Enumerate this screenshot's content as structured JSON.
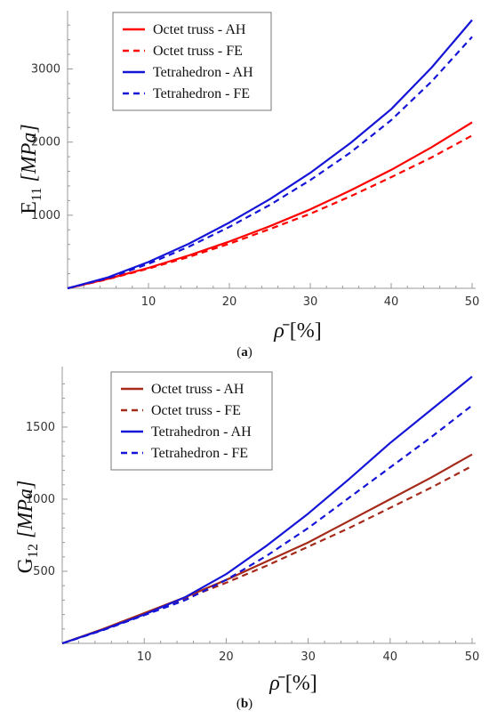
{
  "chart_data": [
    {
      "type": "line",
      "caption": "(a)",
      "xlabel": "ρ̄ [%]",
      "ylabel": "E11 [MPa]",
      "ylabel_main": "E",
      "ylabel_sub": "11",
      "ylabel_unit": "[MPa]",
      "xlim": [
        0,
        50
      ],
      "ylim": [
        0,
        3700
      ],
      "xticks": [
        10,
        20,
        30,
        40,
        50
      ],
      "yticks": [
        1000,
        2000,
        3000
      ],
      "grid": false,
      "legend_position": "top-left",
      "series": [
        {
          "name": "Octet truss - AH",
          "color": "#ff0000",
          "style": "solid",
          "x": [
            0,
            5,
            10,
            15,
            20,
            25,
            30,
            35,
            40,
            45,
            50
          ],
          "y": [
            0,
            130,
            280,
            450,
            640,
            850,
            1080,
            1340,
            1620,
            1930,
            2270
          ]
        },
        {
          "name": "Octet truss - FE",
          "color": "#ff0000",
          "style": "dashed",
          "x": [
            0,
            5,
            10,
            15,
            20,
            25,
            30,
            35,
            40,
            45,
            50
          ],
          "y": [
            0,
            125,
            270,
            430,
            610,
            810,
            1020,
            1260,
            1520,
            1790,
            2090
          ]
        },
        {
          "name": "Tetrahedron - AH",
          "color": "#1515d8",
          "style": "solid",
          "x": [
            0,
            5,
            10,
            15,
            20,
            25,
            30,
            35,
            40,
            45,
            50
          ],
          "y": [
            0,
            150,
            360,
            610,
            900,
            1220,
            1580,
            1990,
            2450,
            3020,
            3670
          ]
        },
        {
          "name": "Tetrahedron - FE",
          "color": "#1515d8",
          "style": "dashed",
          "x": [
            0,
            5,
            10,
            15,
            20,
            25,
            30,
            35,
            40,
            45,
            50
          ],
          "y": [
            0,
            140,
            335,
            570,
            840,
            1140,
            1480,
            1860,
            2300,
            2830,
            3440
          ]
        }
      ]
    },
    {
      "type": "line",
      "caption": "(b)",
      "xlabel": "ρ̄ [%]",
      "ylabel": "G12 [MPa]",
      "ylabel_main": "G",
      "ylabel_sub": "12",
      "ylabel_unit": "[MPa]",
      "xlim": [
        0,
        50
      ],
      "ylim": [
        0,
        1870
      ],
      "xticks": [
        10,
        20,
        30,
        40,
        50
      ],
      "yticks": [
        500,
        1000,
        1500
      ],
      "grid": false,
      "legend_position": "top-left",
      "series": [
        {
          "name": "Octet truss - AH",
          "color": "#a52a1a",
          "style": "solid",
          "x": [
            0,
            5,
            10,
            15,
            20,
            25,
            30,
            35,
            40,
            45,
            50
          ],
          "y": [
            0,
            100,
            210,
            320,
            440,
            570,
            700,
            850,
            1000,
            1150,
            1310
          ]
        },
        {
          "name": "Octet truss - FE",
          "color": "#a52a1a",
          "style": "dashed",
          "x": [
            0,
            5,
            10,
            15,
            20,
            25,
            30,
            35,
            40,
            45,
            50
          ],
          "y": [
            0,
            95,
            200,
            310,
            420,
            540,
            670,
            800,
            940,
            1080,
            1230
          ]
        },
        {
          "name": "Tetrahedron - AH",
          "color": "#1515d8",
          "style": "solid",
          "x": [
            0,
            5,
            10,
            15,
            20,
            25,
            30,
            35,
            40,
            45,
            50
          ],
          "y": [
            0,
            95,
            200,
            320,
            480,
            680,
            900,
            1140,
            1390,
            1620,
            1850
          ]
        },
        {
          "name": "Tetrahedron - FE",
          "color": "#1515d8",
          "style": "dashed",
          "x": [
            0,
            5,
            10,
            15,
            20,
            25,
            30,
            35,
            40,
            45,
            50
          ],
          "y": [
            0,
            92,
            195,
            300,
            440,
            610,
            800,
            1010,
            1220,
            1430,
            1650
          ]
        }
      ]
    }
  ]
}
